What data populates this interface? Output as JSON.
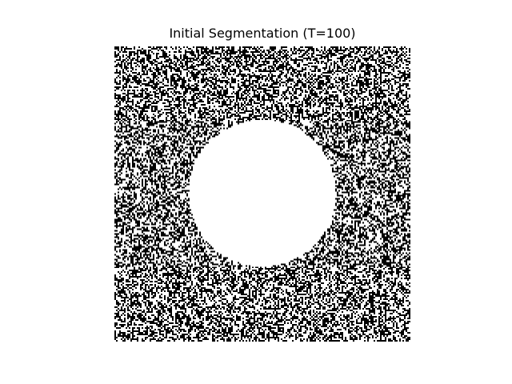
{
  "figure": {
    "title": "Initial Segmentation (T=100)"
  },
  "image": {
    "content": "binary segmentation mask: random black/white noise background with a solid white disk",
    "foreground_color": "#ffffff",
    "background_color": "#000000",
    "noise_white_fraction": 0.5
  }
}
